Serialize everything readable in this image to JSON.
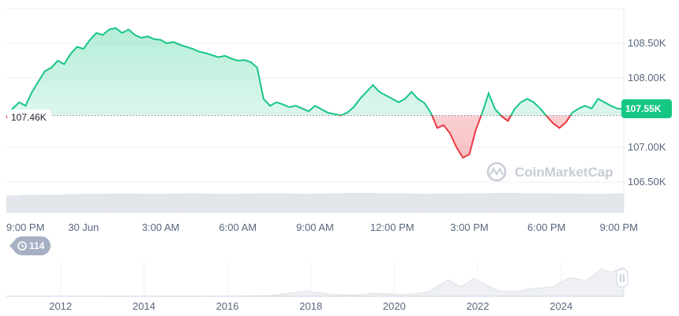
{
  "chart_data": {
    "type": "line",
    "title": "",
    "xlabel": "",
    "ylabel": "",
    "y_range": [
      106200,
      109200
    ],
    "y_ticks": [
      {
        "value": 106500,
        "label": "106.50K"
      },
      {
        "value": 107000,
        "label": "107.00K"
      },
      {
        "value": 107500,
        "label": "107.50K"
      },
      {
        "value": 108000,
        "label": "108.00K"
      },
      {
        "value": 108500,
        "label": "108.50K"
      }
    ],
    "x_range_hours": [
      0,
      24
    ],
    "x_ticks": [
      {
        "hour": 0,
        "label": "9:00 PM"
      },
      {
        "hour": 3,
        "label": "30 Jun"
      },
      {
        "hour": 6,
        "label": "3:00 AM"
      },
      {
        "hour": 9,
        "label": "6:00 AM"
      },
      {
        "hour": 12,
        "label": "9:00 AM"
      },
      {
        "hour": 15,
        "label": "12:00 PM"
      },
      {
        "hour": 18,
        "label": "3:00 PM"
      },
      {
        "hour": 21,
        "label": "6:00 PM"
      },
      {
        "hour": 24,
        "label": "9:00 PM"
      }
    ],
    "reference_line": {
      "value": 107460,
      "label": "107.46K"
    },
    "current_price": {
      "value": 107550,
      "label": "107.55K"
    },
    "price_series": [
      [
        0,
        107420
      ],
      [
        0.25,
        107560
      ],
      [
        0.5,
        107650
      ],
      [
        0.75,
        107600
      ],
      [
        1,
        107800
      ],
      [
        1.25,
        107950
      ],
      [
        1.5,
        108100
      ],
      [
        1.75,
        108150
      ],
      [
        2,
        108250
      ],
      [
        2.25,
        108200
      ],
      [
        2.5,
        108350
      ],
      [
        2.75,
        108450
      ],
      [
        3,
        108420
      ],
      [
        3.25,
        108550
      ],
      [
        3.5,
        108650
      ],
      [
        3.75,
        108620
      ],
      [
        4,
        108700
      ],
      [
        4.25,
        108720
      ],
      [
        4.5,
        108650
      ],
      [
        4.75,
        108700
      ],
      [
        5,
        108620
      ],
      [
        5.25,
        108580
      ],
      [
        5.5,
        108600
      ],
      [
        5.75,
        108560
      ],
      [
        6,
        108550
      ],
      [
        6.25,
        108500
      ],
      [
        6.5,
        108520
      ],
      [
        6.75,
        108480
      ],
      [
        7,
        108450
      ],
      [
        7.25,
        108420
      ],
      [
        7.5,
        108380
      ],
      [
        7.75,
        108360
      ],
      [
        8,
        108330
      ],
      [
        8.25,
        108300
      ],
      [
        8.5,
        108320
      ],
      [
        8.75,
        108280
      ],
      [
        9,
        108250
      ],
      [
        9.25,
        108260
      ],
      [
        9.5,
        108230
      ],
      [
        9.75,
        108150
      ],
      [
        10,
        107700
      ],
      [
        10.25,
        107600
      ],
      [
        10.5,
        107650
      ],
      [
        10.75,
        107620
      ],
      [
        11,
        107580
      ],
      [
        11.25,
        107600
      ],
      [
        11.5,
        107560
      ],
      [
        11.75,
        107520
      ],
      [
        12,
        107600
      ],
      [
        12.25,
        107550
      ],
      [
        12.5,
        107500
      ],
      [
        12.75,
        107480
      ],
      [
        13,
        107460
      ],
      [
        13.25,
        107500
      ],
      [
        13.5,
        107580
      ],
      [
        13.75,
        107700
      ],
      [
        14,
        107800
      ],
      [
        14.25,
        107900
      ],
      [
        14.5,
        107800
      ],
      [
        14.75,
        107750
      ],
      [
        15,
        107700
      ],
      [
        15.25,
        107650
      ],
      [
        15.5,
        107700
      ],
      [
        15.75,
        107800
      ],
      [
        16,
        107700
      ],
      [
        16.25,
        107640
      ],
      [
        16.5,
        107500
      ],
      [
        16.75,
        107280
      ],
      [
        17,
        107320
      ],
      [
        17.25,
        107200
      ],
      [
        17.5,
        107000
      ],
      [
        17.75,
        106850
      ],
      [
        18,
        106900
      ],
      [
        18.25,
        107250
      ],
      [
        18.5,
        107500
      ],
      [
        18.75,
        107780
      ],
      [
        19,
        107550
      ],
      [
        19.25,
        107450
      ],
      [
        19.5,
        107380
      ],
      [
        19.75,
        107550
      ],
      [
        20,
        107650
      ],
      [
        20.25,
        107700
      ],
      [
        20.5,
        107650
      ],
      [
        20.75,
        107560
      ],
      [
        21,
        107450
      ],
      [
        21.25,
        107350
      ],
      [
        21.5,
        107280
      ],
      [
        21.75,
        107360
      ],
      [
        22,
        107500
      ],
      [
        22.25,
        107560
      ],
      [
        22.5,
        107600
      ],
      [
        22.75,
        107560
      ],
      [
        23,
        107700
      ],
      [
        23.25,
        107650
      ],
      [
        23.5,
        107600
      ],
      [
        23.75,
        107560
      ],
      [
        24,
        107550
      ]
    ],
    "volume_series": [
      55,
      57,
      58,
      58,
      59,
      60,
      60,
      61,
      61,
      60,
      60,
      61,
      62,
      61,
      60,
      60,
      61,
      62,
      62,
      61,
      60,
      61,
      62,
      63,
      63,
      62,
      62,
      61,
      60,
      61,
      61,
      62,
      62,
      63,
      63,
      62,
      62,
      61,
      61,
      60,
      60,
      61
    ],
    "colors": {
      "up": "#16c784",
      "down": "#ea3943",
      "up_fill": "#c4efdc",
      "down_fill": "#f6c9cc",
      "grid": "#eff2f5",
      "volume": "#e2e5ea"
    },
    "navigator": {
      "year_labels": [
        "2012",
        "2014",
        "2016",
        "2018",
        "2020",
        "2022",
        "2024"
      ],
      "year_range": [
        2010.7,
        2025.5
      ],
      "history": [
        [
          2010.7,
          0.2
        ],
        [
          2013.0,
          0.3
        ],
        [
          2014.0,
          0.5
        ],
        [
          2015.5,
          0.4
        ],
        [
          2017.0,
          2.0
        ],
        [
          2017.9,
          19
        ],
        [
          2018.5,
          7
        ],
        [
          2019.0,
          4
        ],
        [
          2019.5,
          11
        ],
        [
          2020.0,
          8
        ],
        [
          2020.3,
          6
        ],
        [
          2020.8,
          15
        ],
        [
          2021.0,
          35
        ],
        [
          2021.3,
          60
        ],
        [
          2021.6,
          35
        ],
        [
          2021.9,
          65
        ],
        [
          2022.2,
          42
        ],
        [
          2022.5,
          20
        ],
        [
          2022.9,
          17
        ],
        [
          2023.3,
          28
        ],
        [
          2023.8,
          35
        ],
        [
          2024.2,
          68
        ],
        [
          2024.6,
          58
        ],
        [
          2024.95,
          100
        ],
        [
          2025.2,
          88
        ],
        [
          2025.5,
          107
        ]
      ]
    }
  },
  "badge": {
    "label": "114",
    "icon": "history-icon"
  },
  "watermark": {
    "text": "CoinMarketCap"
  }
}
